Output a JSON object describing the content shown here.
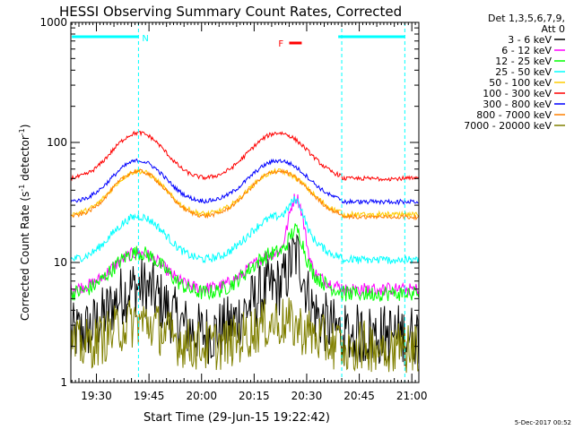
{
  "chart_data": {
    "type": "line",
    "title": "HESSI Observing Summary Count Rates, Corrected",
    "xlabel": "Start Time (29-Jun-15 19:22:42)",
    "ylabel_main": "Corrected Count Rate (s",
    "ylabel_sup1": "-1",
    "ylabel_mid": " detector",
    "ylabel_sup2": "-1",
    "ylabel_end": ")",
    "yscale": "log",
    "ylim": [
      1,
      1000
    ],
    "xlim_minutes": [
      19.3,
      21.03
    ],
    "yticks": [
      {
        "value": 1,
        "label": "1"
      },
      {
        "value": 10,
        "label": "10"
      },
      {
        "value": 100,
        "label": "100"
      },
      {
        "value": 1000,
        "label": "1000"
      }
    ],
    "xticks": [
      {
        "time": "19:30",
        "label": "19:30"
      },
      {
        "time": "19:45",
        "label": "19:45"
      },
      {
        "time": "20:00",
        "label": "20:00"
      },
      {
        "time": "20:15",
        "label": "20:15"
      },
      {
        "time": "20:30",
        "label": "20:30"
      },
      {
        "time": "20:45",
        "label": "20:45"
      },
      {
        "time": "21:00",
        "label": "21:00"
      }
    ],
    "legend_header": [
      "Det 1,3,5,6,7,9,",
      "Att 0"
    ],
    "series": [
      {
        "name": "3 - 6 keV",
        "color": "#000000",
        "base": 2.5,
        "peak_amp": 6,
        "noise": 0.6
      },
      {
        "name": "6 - 12 keV",
        "color": "#ff00ff",
        "base": 6,
        "peak_amp": 24,
        "noise": 0.12
      },
      {
        "name": "12 - 25 keV",
        "color": "#00ff00",
        "base": 5.5,
        "peak_amp": 8,
        "noise": 0.15
      },
      {
        "name": "25 - 50 keV",
        "color": "#00ffff",
        "base": 10.5,
        "peak_amp": 12,
        "noise": 0.08
      },
      {
        "name": "50 - 100 keV",
        "color": "#ffcc00",
        "base": 25,
        "peak_amp": 0,
        "noise": 0.05
      },
      {
        "name": "100 - 300 keV",
        "color": "#ff0000",
        "base": 50,
        "peak_amp": 0,
        "noise": 0.04
      },
      {
        "name": "300 - 800 keV",
        "color": "#0000ff",
        "base": 32,
        "peak_amp": 0,
        "noise": 0.04
      },
      {
        "name": "800 - 7000 keV",
        "color": "#ff8000",
        "base": 24,
        "peak_amp": 0,
        "noise": 0.04
      },
      {
        "name": "7000 - 20000 keV",
        "color": "#808000",
        "base": 2,
        "peak_amp": 0,
        "noise": 0.5
      }
    ],
    "annotations": [
      {
        "label": "N",
        "color": "#00ffff"
      },
      {
        "label": "F",
        "color": "#ff0000"
      }
    ],
    "timestamp": "5-Dec-2017 00:52"
  }
}
